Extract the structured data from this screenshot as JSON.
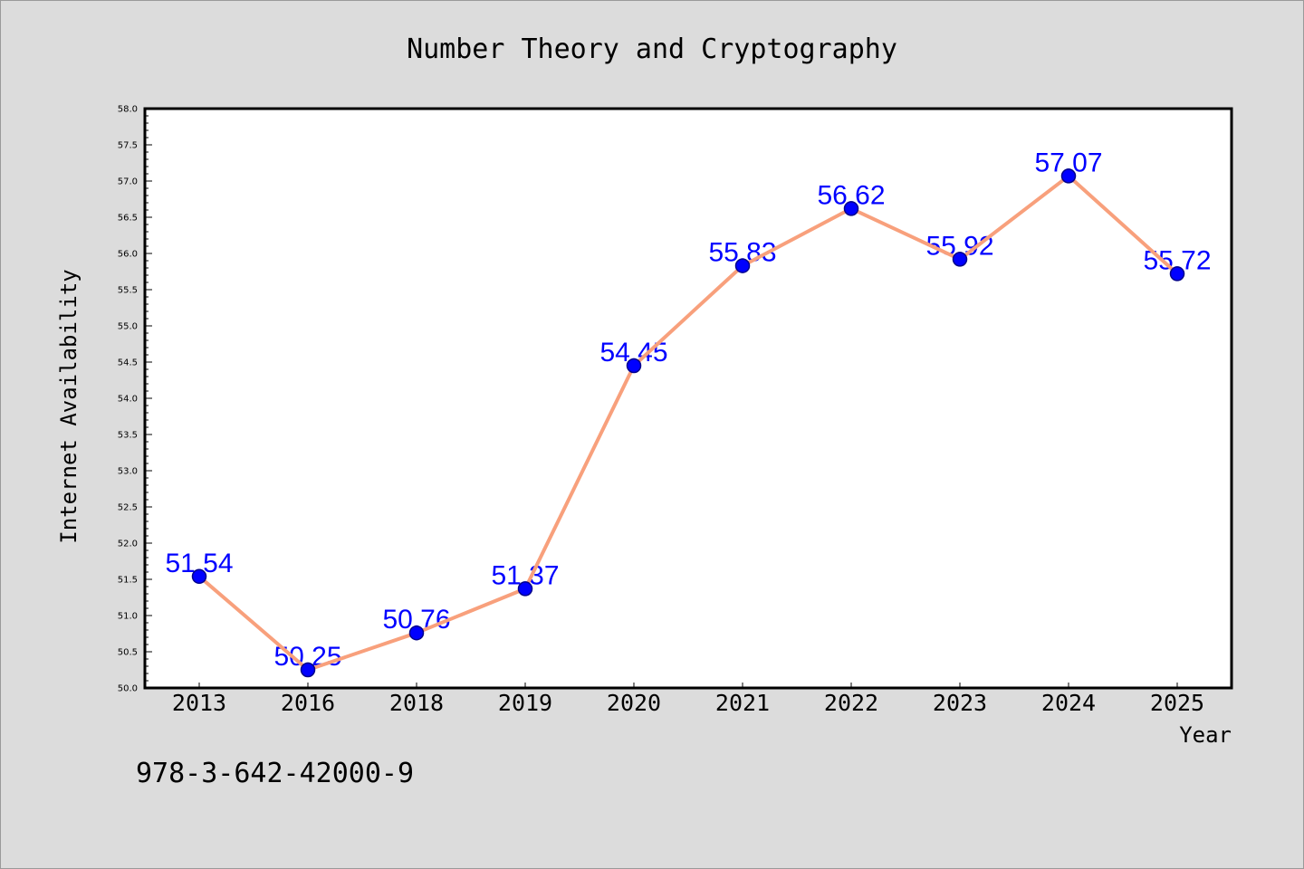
{
  "chart_data": {
    "type": "line",
    "title": "Number Theory and Cryptography",
    "xlabel": "Year",
    "ylabel": "Internet Availability",
    "categories": [
      "2013",
      "2016",
      "2018",
      "2019",
      "2020",
      "2021",
      "2022",
      "2023",
      "2024",
      "2025"
    ],
    "series": [
      {
        "values": [
          51.54,
          50.25,
          50.76,
          51.37,
          54.45,
          55.83,
          56.62,
          55.92,
          57.07,
          55.72
        ]
      }
    ],
    "ylim": [
      50.0,
      58.0
    ],
    "yticks": [
      50.0,
      50.5,
      51.0,
      51.5,
      52.0,
      52.5,
      53.0,
      53.5,
      54.0,
      54.5,
      55.0,
      55.5,
      56.0,
      56.5,
      57.0,
      57.5,
      58.0
    ],
    "grid": false,
    "legend": "none",
    "data_labels": true,
    "markers": "circle"
  },
  "annotation": "978-3-642-42000-9",
  "colors": {
    "background": "#dcdcdc",
    "plot_background": "#ffffff",
    "line": "#f8a07c",
    "marker": "#0000ff",
    "marker_edge": "#00008b",
    "data_label": "#0000ff",
    "axis": "#000000"
  }
}
